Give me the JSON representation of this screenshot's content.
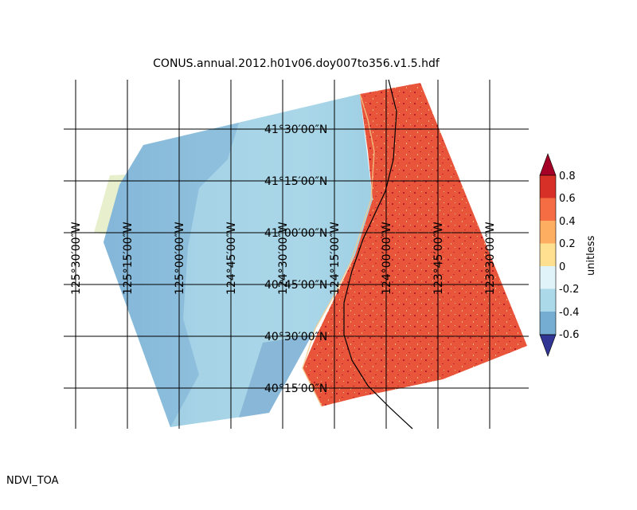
{
  "title": "CONUS.annual.2012.h01v06.doy007to356.v1.5.hdf",
  "variable_label": "NDVI_TOA",
  "colorbar": {
    "label": "unitless",
    "ticks": [
      "0.8",
      "0.6",
      "0.4",
      "0.2",
      "0",
      "-0.2",
      "-0.4",
      "-0.6"
    ],
    "bins": [
      {
        "range": "0.6 to 0.8",
        "color": "#d73027"
      },
      {
        "range": "0.4 to 0.6",
        "color": "#f46d43"
      },
      {
        "range": "0.2 to 0.4",
        "color": "#fdae61"
      },
      {
        "range": "0 to 0.2",
        "color": "#fee090"
      },
      {
        "range": "-0.2 to 0",
        "color": "#e0f3f8"
      },
      {
        "range": "-0.4 to -0.2",
        "color": "#abd9e9"
      },
      {
        "range": "-0.6 to -0.4",
        "color": "#74add1"
      },
      {
        "range": "below -0.6",
        "color": "#4575b4"
      }
    ],
    "over_color": "#a50026",
    "under_color": "#313695"
  },
  "latitude_labels": [
    "41°30′00″N",
    "41°15′00″N",
    "41°00′00″N",
    "40°45′00″N",
    "40°30′00″N",
    "40°15′00″N"
  ],
  "longitude_labels": [
    "125°30′00″W",
    "125°15′00″W",
    "125°00′00″W",
    "124°45′00″W",
    "124°30′00″W",
    "124°15′00″W",
    "124°00′00″W",
    "123°45′00″W",
    "123°30′00″W"
  ],
  "colors": {
    "ocean_light": "#a8d6e6",
    "ocean_mid": "#78b2d6",
    "land": "#e8533a",
    "land_dark": "#b41c2a",
    "land_bright": "#f8d08a",
    "edge_yellow": "#e4ecc4",
    "grid": "#000000"
  }
}
